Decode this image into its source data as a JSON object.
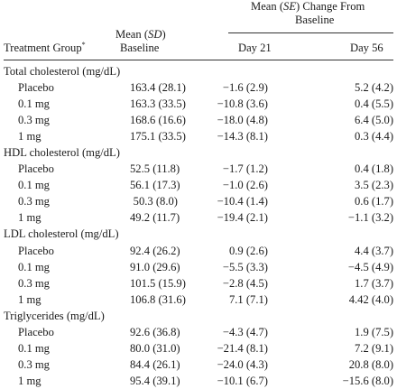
{
  "header": {
    "col_group": "Treatment Group",
    "col_group_mark": "*",
    "col_mean_line1": "Mean (",
    "col_mean_sd": "SD",
    "col_mean_line1_end": ")",
    "col_mean_line2": "Baseline",
    "col_change_line1_a": "Mean (",
    "col_change_se": "SE",
    "col_change_line1_b": ") Change From",
    "col_change_line2": "Baseline",
    "col_day21": "Day 21",
    "col_day56": "Day 56"
  },
  "sections": [
    {
      "title": "Total cholesterol (mg/dL)",
      "rows": [
        {
          "group": "Placebo",
          "baseline": "163.4 (28.1)",
          "day21": "−1.6 (2.9)",
          "day56": "5.2 (4.2)"
        },
        {
          "group": "0.1 mg",
          "baseline": "163.3 (33.5)",
          "day21": "−10.8 (3.6)",
          "day56": "0.4 (5.5)"
        },
        {
          "group": "0.3 mg",
          "baseline": "168.6 (16.6)",
          "day21": "−18.0 (4.8)",
          "day56": "6.4 (5.0)"
        },
        {
          "group": "1 mg",
          "baseline": "175.1 (33.5)",
          "day21": "−14.3 (8.1)",
          "day56": "0.3 (4.4)"
        }
      ]
    },
    {
      "title": "HDL cholesterol (mg/dL)",
      "rows": [
        {
          "group": "Placebo",
          "baseline": "52.5 (11.8)",
          "day21": "−1.7 (1.2)",
          "day56": "0.4 (1.8)"
        },
        {
          "group": "0.1 mg",
          "baseline": "56.1 (17.3)",
          "day21": "−1.0 (2.6)",
          "day56": "3.5 (2.3)"
        },
        {
          "group": "0.3 mg",
          "baseline": "50.3 (8.0)",
          "day21": "−10.4 (1.4)",
          "day56": "0.6 (1.7)"
        },
        {
          "group": "1 mg",
          "baseline": "49.2 (11.7)",
          "day21": "−19.4 (2.1)",
          "day56": "−1.1 (3.2)"
        }
      ]
    },
    {
      "title": "LDL cholesterol (mg/dL)",
      "rows": [
        {
          "group": "Placebo",
          "baseline": "92.4 (26.2)",
          "day21": "0.9 (2.6)",
          "day56": "4.4 (3.7)"
        },
        {
          "group": "0.1 mg",
          "baseline": "91.0 (29.6)",
          "day21": "−5.5 (3.3)",
          "day56": "−4.5 (4.9)"
        },
        {
          "group": "0.3 mg",
          "baseline": "101.5 (15.9)",
          "day21": "−2.8 (4.5)",
          "day56": "1.7 (3.7)"
        },
        {
          "group": "1 mg",
          "baseline": "106.8 (31.6)",
          "day21": "7.1 (7.1)",
          "day56": "4.42 (4.0)"
        }
      ]
    },
    {
      "title": "Triglycerides (mg/dL)",
      "rows": [
        {
          "group": "Placebo",
          "baseline": "92.6 (36.8)",
          "day21": "−4.3 (4.7)",
          "day56": "1.9 (7.5)"
        },
        {
          "group": "0.1 mg",
          "baseline": "80.0 (31.0)",
          "day21": "−21.4 (8.1)",
          "day56": "7.2 (9.1)"
        },
        {
          "group": "0.3 mg",
          "baseline": "84.4 (26.1)",
          "day21": "−24.0 (4.3)",
          "day56": "20.8 (8.0)"
        },
        {
          "group": "1 mg",
          "baseline": "95.4 (39.1)",
          "day21": "−10.1 (6.7)",
          "day56": "−15.6 (8.0)"
        }
      ]
    }
  ]
}
